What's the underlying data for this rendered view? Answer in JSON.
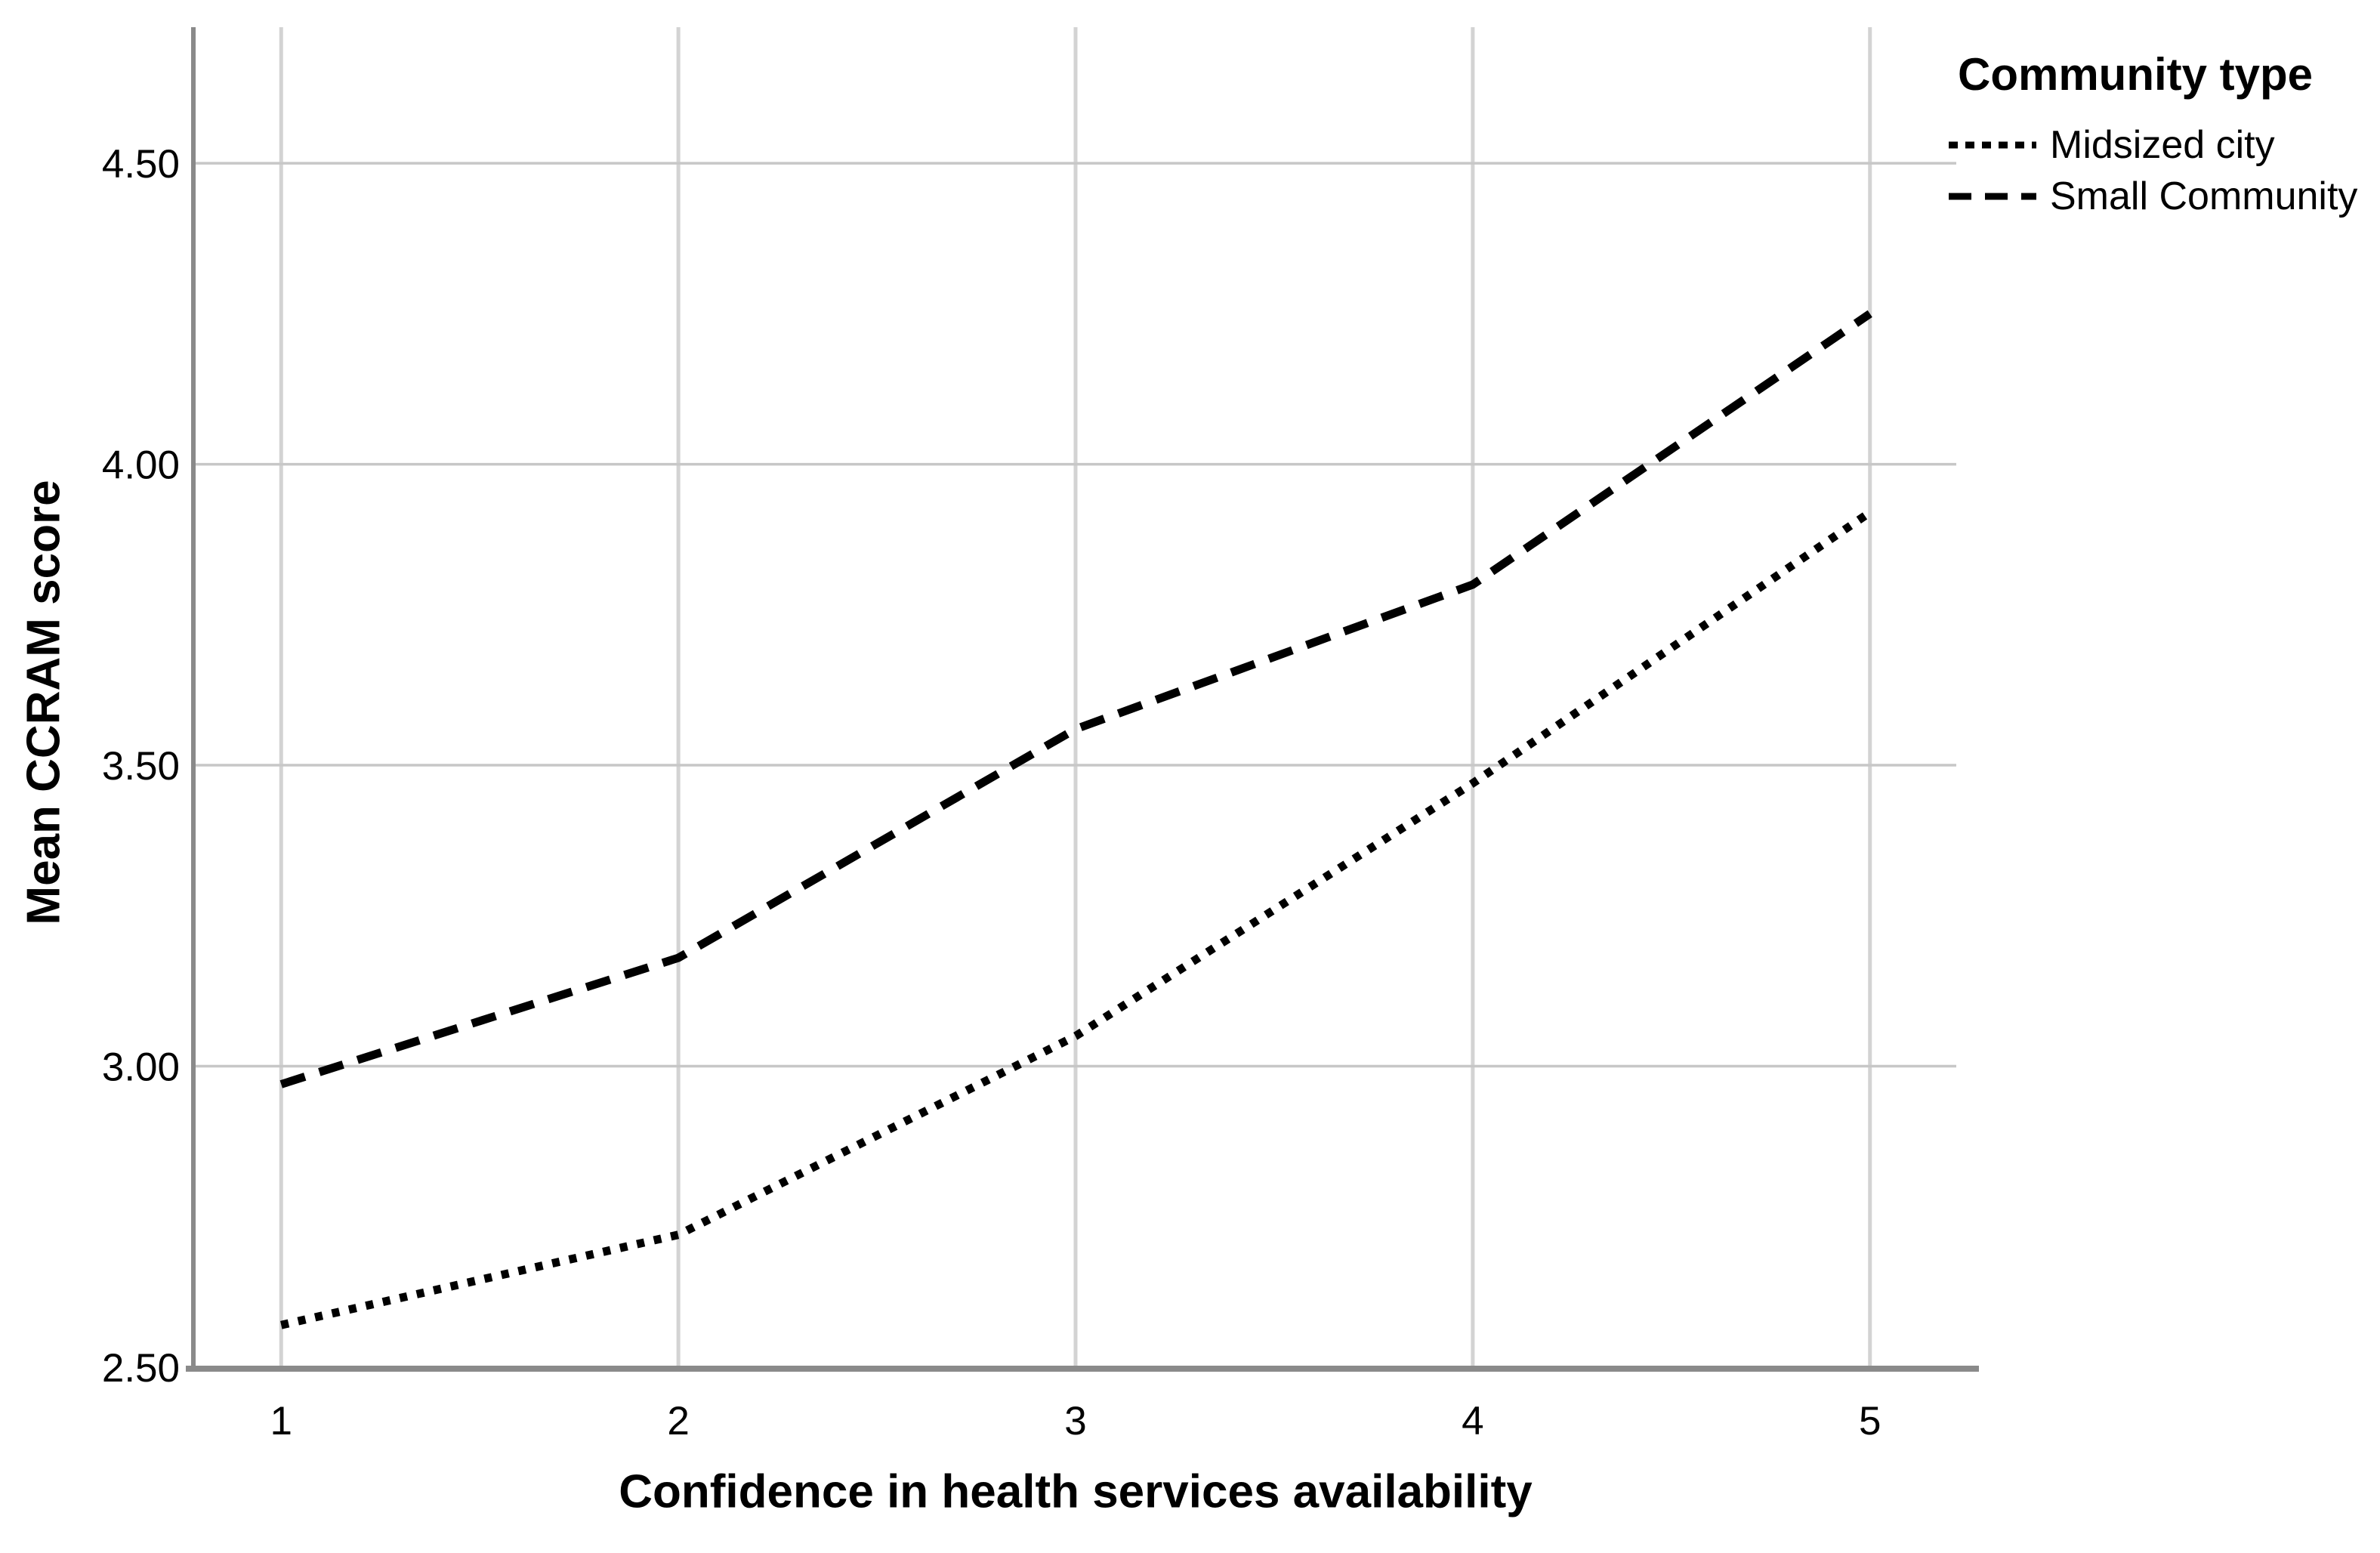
{
  "chart_data": {
    "type": "line",
    "title": "",
    "xlabel": "Confidence in health services availability",
    "ylabel": "Mean CCRAM score",
    "legend_title": "Community type",
    "legend_position": "top-right",
    "grid": true,
    "x": [
      1,
      2,
      3,
      4,
      5
    ],
    "x_tick_labels": [
      "1",
      "2",
      "3",
      "4",
      "5"
    ],
    "y_tick_labels": [
      "2.50",
      "3.00",
      "3.50",
      "4.00",
      "4.50"
    ],
    "y_tick_values": [
      2.5,
      3.0,
      3.5,
      4.0,
      4.5
    ],
    "ylim": [
      2.5,
      4.726
    ],
    "series": [
      {
        "name": "Midsized city",
        "line_style": "dotted",
        "color": "#000000",
        "values": [
          2.57,
          2.72,
          3.05,
          3.47,
          3.92
        ]
      },
      {
        "name": "Small Community",
        "line_style": "dashed",
        "color": "#000000",
        "values": [
          2.97,
          3.18,
          3.56,
          3.8,
          4.25
        ]
      }
    ]
  },
  "colors": {
    "background": "#ffffff",
    "axis_line": "#8a8a8a",
    "vertical_grid": "#d3d3d3",
    "horizontal_grid": "#c7c7c7",
    "series_line": "#000000",
    "text": "#000000"
  }
}
